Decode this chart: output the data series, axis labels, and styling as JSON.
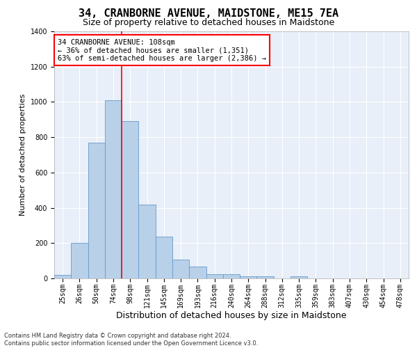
{
  "title": "34, CRANBORNE AVENUE, MAIDSTONE, ME15 7EA",
  "subtitle": "Size of property relative to detached houses in Maidstone",
  "xlabel": "Distribution of detached houses by size in Maidstone",
  "ylabel": "Number of detached properties",
  "categories": [
    "25sqm",
    "26sqm",
    "50sqm",
    "74sqm",
    "98sqm",
    "121sqm",
    "145sqm",
    "169sqm",
    "193sqm",
    "216sqm",
    "240sqm",
    "264sqm",
    "288sqm",
    "312sqm",
    "335sqm",
    "359sqm",
    "383sqm",
    "407sqm",
    "430sqm",
    "454sqm",
    "478sqm"
  ],
  "values": [
    20,
    200,
    770,
    1010,
    890,
    420,
    235,
    107,
    68,
    25,
    22,
    12,
    10,
    0,
    13,
    0,
    0,
    0,
    0,
    0,
    0
  ],
  "bar_color": "#b8d0e8",
  "bar_edge_color": "#6699cc",
  "vline_x": 3.5,
  "vline_color": "red",
  "annotation_text": "34 CRANBORNE AVENUE: 108sqm\n← 36% of detached houses are smaller (1,351)\n63% of semi-detached houses are larger (2,386) →",
  "annotation_box_color": "white",
  "annotation_box_edge_color": "red",
  "ylim": [
    0,
    1400
  ],
  "yticks": [
    0,
    200,
    400,
    600,
    800,
    1000,
    1200,
    1400
  ],
  "background_color": "#e8eff8",
  "footer_line1": "Contains HM Land Registry data © Crown copyright and database right 2024.",
  "footer_line2": "Contains public sector information licensed under the Open Government Licence v3.0.",
  "title_fontsize": 11,
  "subtitle_fontsize": 9,
  "xlabel_fontsize": 9,
  "ylabel_fontsize": 8,
  "tick_fontsize": 7,
  "annotation_fontsize": 7.5,
  "footer_fontsize": 6
}
